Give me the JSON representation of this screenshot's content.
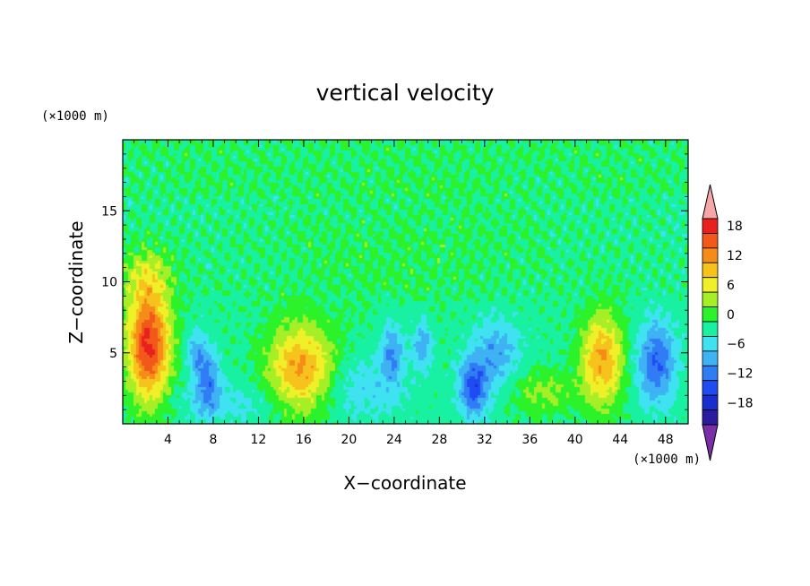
{
  "chart_data": {
    "type": "heatmap",
    "title": "vertical velocity",
    "xlabel": "X−coordinate",
    "ylabel": "Z−coordinate",
    "x_unit": "(×1000 m)",
    "y_unit": "(×1000 m)",
    "xlim": [
      0,
      50
    ],
    "ylim": [
      0,
      20
    ],
    "x_ticks": [
      4,
      8,
      12,
      16,
      20,
      24,
      28,
      32,
      36,
      40,
      44,
      48
    ],
    "x_tick_labels": [
      "4",
      "8",
      "12",
      "16",
      "20",
      "24",
      "28",
      "32",
      "36",
      "40",
      "44",
      "48"
    ],
    "y_ticks": [
      5,
      10,
      15
    ],
    "y_tick_labels": [
      "5",
      "10",
      "15"
    ],
    "colorbar": {
      "levels": [
        -21,
        -18,
        -15,
        -12,
        -9,
        -6,
        -3,
        0,
        3,
        6,
        9,
        12,
        15,
        18,
        21
      ],
      "tick_values": [
        18,
        12,
        6,
        0,
        -6,
        -12,
        -18
      ],
      "tick_labels": [
        "18",
        "12",
        "6",
        "0",
        "−6",
        "−12",
        "−18"
      ],
      "colors": [
        "#7a2ea8",
        "#2a1c9c",
        "#1a2ed0",
        "#1f4cf2",
        "#2f7cf4",
        "#3fb2f4",
        "#3ee2f0",
        "#18f0a2",
        "#2cf22a",
        "#a6ee26",
        "#f0f028",
        "#f6c21c",
        "#f68c18",
        "#f2581a",
        "#e8201e",
        "#f4a8a8"
      ],
      "extend": "both"
    },
    "features": [
      {
        "x": 2.3,
        "z": 5.6,
        "sx": 1.3,
        "sz": 2.8,
        "w": 20
      },
      {
        "x": 2.2,
        "z": 10.5,
        "sx": 1.6,
        "sz": 1.3,
        "w": 5
      },
      {
        "x": 7.5,
        "z": 3.0,
        "sx": 0.8,
        "sz": 1.6,
        "w": -9
      },
      {
        "x": 6.5,
        "z": 5.0,
        "sx": 0.6,
        "sz": 1.0,
        "w": -6
      },
      {
        "x": 15.8,
        "z": 3.8,
        "sx": 2.0,
        "sz": 2.2,
        "w": 14
      },
      {
        "x": 23.8,
        "z": 5.0,
        "sx": 0.7,
        "sz": 1.5,
        "w": -8
      },
      {
        "x": 26.5,
        "z": 5.5,
        "sx": 0.6,
        "sz": 1.2,
        "w": -7
      },
      {
        "x": 31.0,
        "z": 2.5,
        "sx": 0.9,
        "sz": 1.4,
        "w": -12
      },
      {
        "x": 33.0,
        "z": 5.0,
        "sx": 1.5,
        "sz": 1.8,
        "w": -7
      },
      {
        "x": 37.0,
        "z": 2.2,
        "sx": 2.0,
        "sz": 1.1,
        "w": 5
      },
      {
        "x": 42.4,
        "z": 4.5,
        "sx": 1.3,
        "sz": 2.3,
        "w": 13
      },
      {
        "x": 47.2,
        "z": 4.3,
        "sx": 1.2,
        "sz": 2.0,
        "w": -11
      },
      {
        "x": 25.0,
        "z": 12.0,
        "sx": 9.0,
        "sz": 3.0,
        "w": 1.5
      },
      {
        "x": 10.0,
        "z": 1.5,
        "sx": 4.0,
        "sz": 1.0,
        "w": -3
      },
      {
        "x": 21.0,
        "z": 2.5,
        "sx": 3.0,
        "sz": 1.5,
        "w": -4
      }
    ]
  }
}
